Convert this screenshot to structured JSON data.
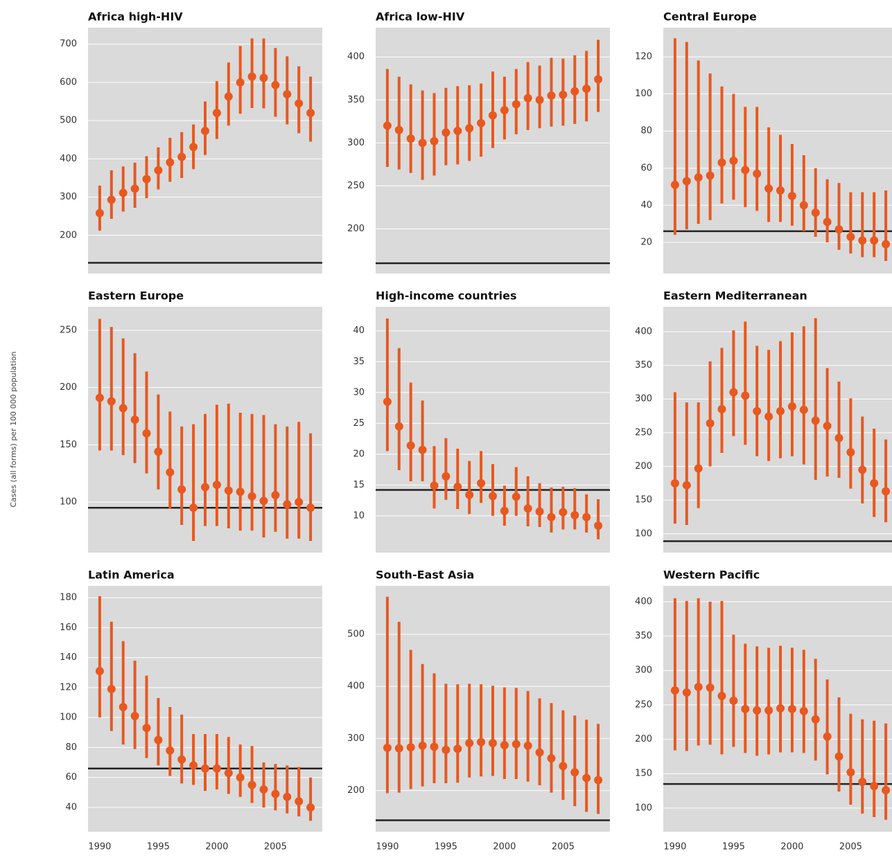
{
  "y_label": "Cases (all forms) per 100 000 population",
  "chart_data": [
    {
      "type": "errorbar",
      "title": "Africa high-HIV",
      "color": "#e8581f",
      "reference_color": "#222222",
      "grid": true,
      "x": [
        1990,
        1991,
        1992,
        1993,
        1994,
        1995,
        1996,
        1997,
        1998,
        1999,
        2000,
        2001,
        2002,
        2003,
        2004,
        2005,
        2006,
        2007,
        2008
      ],
      "values": [
        258,
        293,
        311,
        322,
        347,
        370,
        391,
        405,
        431,
        473,
        520,
        563,
        600,
        615,
        612,
        593,
        569,
        545,
        520
      ],
      "lower": [
        212,
        243,
        262,
        272,
        297,
        320,
        340,
        350,
        373,
        410,
        452,
        487,
        518,
        533,
        532,
        510,
        490,
        467,
        445
      ],
      "upper": [
        330,
        370,
        380,
        390,
        407,
        430,
        455,
        470,
        490,
        550,
        603,
        652,
        695,
        715,
        715,
        690,
        668,
        642,
        615
      ],
      "reference_line": 128,
      "xlim": [
        1989,
        2009
      ],
      "ylim": [
        100,
        743
      ],
      "yticks": [
        200,
        300,
        400,
        500,
        600,
        700
      ]
    },
    {
      "type": "errorbar",
      "title": "Africa low-HIV",
      "color": "#e8581f",
      "reference_color": "#222222",
      "grid": true,
      "x": [
        1990,
        1991,
        1992,
        1993,
        1994,
        1995,
        1996,
        1997,
        1998,
        1999,
        2000,
        2001,
        2002,
        2003,
        2004,
        2005,
        2006,
        2007,
        2008
      ],
      "values": [
        320,
        315,
        305,
        300,
        302,
        312,
        314,
        317,
        323,
        332,
        338,
        345,
        352,
        350,
        355,
        356,
        360,
        363,
        374
      ],
      "lower": [
        272,
        269,
        265,
        257,
        262,
        274,
        275,
        279,
        284,
        294,
        304,
        310,
        315,
        317,
        319,
        320,
        322,
        325,
        336
      ],
      "upper": [
        386,
        377,
        368,
        361,
        358,
        364,
        366,
        367,
        369,
        383,
        377,
        386,
        394,
        390,
        399,
        398,
        402,
        407,
        420
      ],
      "reference_line": 160,
      "xlim": [
        1989,
        2009
      ],
      "ylim": [
        148,
        434
      ],
      "yticks": [
        200,
        250,
        300,
        350,
        400
      ]
    },
    {
      "type": "errorbar",
      "title": "Central Europe",
      "color": "#e8581f",
      "reference_color": "#222222",
      "grid": true,
      "x": [
        1990,
        1991,
        1992,
        1993,
        1994,
        1995,
        1996,
        1997,
        1998,
        1999,
        2000,
        2001,
        2002,
        2003,
        2004,
        2005,
        2006,
        2007,
        2008
      ],
      "values": [
        51,
        53,
        55,
        56,
        63,
        64,
        59,
        57,
        49,
        48,
        45,
        40,
        36,
        31,
        27,
        23,
        21,
        21,
        19
      ],
      "lower": [
        24,
        27,
        30,
        32,
        41,
        43,
        39,
        37,
        31,
        31,
        29,
        26,
        23,
        20,
        16,
        14,
        12,
        12,
        10
      ],
      "upper": [
        130,
        128,
        118,
        111,
        104,
        100,
        93,
        93,
        82,
        78,
        73,
        67,
        60,
        54,
        52,
        47,
        47,
        47,
        48
      ],
      "reference_line": 26,
      "xlim": [
        1989,
        2009
      ],
      "ylim": [
        3.2,
        135.7
      ],
      "yticks": [
        20,
        40,
        60,
        80,
        100,
        120
      ]
    },
    {
      "type": "errorbar",
      "title": "Eastern Europe",
      "color": "#e8581f",
      "reference_color": "#222222",
      "grid": true,
      "x": [
        1990,
        1991,
        1992,
        1993,
        1994,
        1995,
        1996,
        1997,
        1998,
        1999,
        2000,
        2001,
        2002,
        2003,
        2004,
        2005,
        2006,
        2007,
        2008
      ],
      "values": [
        191,
        188,
        182,
        172,
        160,
        144,
        126,
        111,
        95,
        113,
        115,
        110,
        109,
        105,
        101,
        106,
        98,
        100,
        95
      ],
      "lower": [
        145,
        145,
        141,
        134,
        125,
        111,
        94,
        80,
        66,
        79,
        79,
        77,
        75,
        75,
        69,
        74,
        68,
        68,
        66
      ],
      "upper": [
        260,
        253,
        243,
        230,
        214,
        194,
        179,
        166,
        168,
        177,
        185,
        186,
        178,
        177,
        176,
        168,
        166,
        170,
        160
      ],
      "reference_line": 95,
      "xlim": [
        1989,
        2009
      ],
      "ylim": [
        55.8,
        270.6
      ],
      "yticks": [
        100,
        150,
        200,
        250
      ]
    },
    {
      "type": "errorbar",
      "title": "High-income countries",
      "color": "#e8581f",
      "reference_color": "#222222",
      "grid": true,
      "x": [
        1990,
        1991,
        1992,
        1993,
        1994,
        1995,
        1996,
        1997,
        1998,
        1999,
        2000,
        2001,
        2002,
        2003,
        2004,
        2005,
        2006,
        2007,
        2008
      ],
      "values": [
        28.5,
        24.5,
        21.4,
        20.7,
        14.9,
        16.4,
        14.7,
        13.4,
        15.3,
        13.2,
        10.8,
        13.1,
        11.2,
        10.7,
        9.8,
        10.6,
        10.1,
        9.8,
        8.4
      ],
      "lower": [
        20.5,
        17.4,
        15.6,
        15.6,
        11.2,
        12.6,
        11.1,
        10.3,
        12.1,
        10,
        8.4,
        10,
        8.3,
        8.2,
        7.3,
        7.8,
        7.8,
        7.3,
        6.2
      ],
      "upper": [
        42,
        37.2,
        31.6,
        28.7,
        21.3,
        22.6,
        20.9,
        18.9,
        20.5,
        18.4,
        14.9,
        17.9,
        16.4,
        15.3,
        14.6,
        14.7,
        14.5,
        13.5,
        12.7
      ],
      "reference_line": 14.2,
      "xlim": [
        1989,
        2009
      ],
      "ylim": [
        4.04,
        43.9
      ],
      "yticks": [
        10,
        15,
        20,
        25,
        30,
        35,
        40
      ]
    },
    {
      "type": "errorbar",
      "title": "Eastern Mediterranean",
      "color": "#e8581f",
      "reference_color": "#222222",
      "grid": true,
      "x": [
        1990,
        1991,
        1992,
        1993,
        1994,
        1995,
        1996,
        1997,
        1998,
        1999,
        2000,
        2001,
        2002,
        2003,
        2004,
        2005,
        2006,
        2007,
        2008
      ],
      "values": [
        175,
        172,
        197,
        264,
        285,
        310,
        305,
        282,
        274,
        282,
        289,
        284,
        268,
        260,
        242,
        221,
        195,
        175,
        163
      ],
      "lower": [
        115,
        113,
        138,
        200,
        220,
        245,
        232,
        215,
        208,
        212,
        215,
        203,
        180,
        185,
        183,
        167,
        145,
        125,
        117
      ],
      "upper": [
        310,
        295,
        295,
        356,
        376,
        402,
        415,
        379,
        373,
        386,
        399,
        408,
        420,
        346,
        326,
        301,
        274,
        256,
        240
      ],
      "reference_line": 89,
      "xlim": [
        1989,
        2009
      ],
      "ylim": [
        72,
        437
      ],
      "yticks": [
        100,
        150,
        200,
        250,
        300,
        350,
        400
      ]
    },
    {
      "type": "errorbar",
      "title": "Latin America",
      "color": "#e8581f",
      "reference_color": "#222222",
      "grid": true,
      "x": [
        1990,
        1991,
        1992,
        1993,
        1994,
        1995,
        1996,
        1997,
        1998,
        1999,
        2000,
        2001,
        2002,
        2003,
        2004,
        2005,
        2006,
        2007,
        2008
      ],
      "values": [
        131,
        119,
        107,
        101,
        93,
        85,
        78,
        72,
        68,
        66,
        66,
        63,
        60,
        55,
        52,
        49,
        47,
        44,
        40
      ],
      "lower": [
        100,
        91,
        82,
        79,
        73,
        68,
        61,
        56,
        55,
        51,
        52,
        49,
        47,
        43,
        40,
        38,
        36,
        34,
        31
      ],
      "upper": [
        181,
        164,
        151,
        138,
        128,
        113,
        107,
        102,
        89,
        89,
        89,
        87,
        82,
        81,
        70,
        69,
        68,
        67,
        60
      ],
      "reference_line": 66,
      "xlim": [
        1989,
        2009
      ],
      "ylim": [
        23.8,
        187.9
      ],
      "yticks": [
        40,
        60,
        80,
        100,
        120,
        140,
        160,
        180
      ],
      "xticks": [
        1990,
        1995,
        2000,
        2005
      ]
    },
    {
      "type": "errorbar",
      "title": "South-East Asia",
      "color": "#e8581f",
      "reference_color": "#222222",
      "grid": true,
      "x": [
        1990,
        1991,
        1992,
        1993,
        1994,
        1995,
        1996,
        1997,
        1998,
        1999,
        2000,
        2001,
        2002,
        2003,
        2004,
        2005,
        2006,
        2007,
        2008
      ],
      "values": [
        282,
        281,
        283,
        286,
        284,
        278,
        280,
        291,
        293,
        291,
        287,
        289,
        286,
        273,
        262,
        247,
        235,
        224,
        220
      ],
      "lower": [
        195,
        196,
        203,
        208,
        214,
        214,
        215,
        225,
        227,
        228,
        222,
        222,
        217,
        210,
        196,
        182,
        170,
        159,
        155
      ],
      "upper": [
        572,
        524,
        470,
        443,
        425,
        405,
        404,
        405,
        404,
        401,
        398,
        397,
        391,
        377,
        368,
        354,
        344,
        336,
        328
      ],
      "reference_line": 143,
      "xlim": [
        1989,
        2009
      ],
      "ylim": [
        121,
        593
      ],
      "yticks": [
        200,
        300,
        400,
        500
      ],
      "xticks": [
        1990,
        1995,
        2000,
        2005
      ]
    },
    {
      "type": "errorbar",
      "title": "Western Pacific",
      "color": "#e8581f",
      "reference_color": "#222222",
      "grid": true,
      "x": [
        1990,
        1991,
        1992,
        1993,
        1994,
        1995,
        1996,
        1997,
        1998,
        1999,
        2000,
        2001,
        2002,
        2003,
        2004,
        2005,
        2006,
        2007,
        2008
      ],
      "values": [
        271,
        268,
        276,
        275,
        263,
        256,
        244,
        242,
        242,
        245,
        244,
        241,
        229,
        204,
        175,
        152,
        138,
        132,
        126
      ],
      "lower": [
        184,
        183,
        191,
        192,
        178,
        189,
        180,
        176,
        178,
        181,
        181,
        180,
        169,
        149,
        124,
        105,
        92,
        87,
        83
      ],
      "upper": [
        405,
        401,
        405,
        400,
        401,
        352,
        339,
        335,
        333,
        336,
        333,
        330,
        317,
        287,
        261,
        237,
        229,
        227,
        223
      ],
      "reference_line": 135,
      "xlim": [
        1989,
        2009
      ],
      "ylim": [
        65.7,
        423
      ],
      "yticks": [
        100,
        150,
        200,
        250,
        300,
        350,
        400
      ],
      "xticks": [
        1990,
        1995,
        2000,
        2005
      ]
    }
  ]
}
